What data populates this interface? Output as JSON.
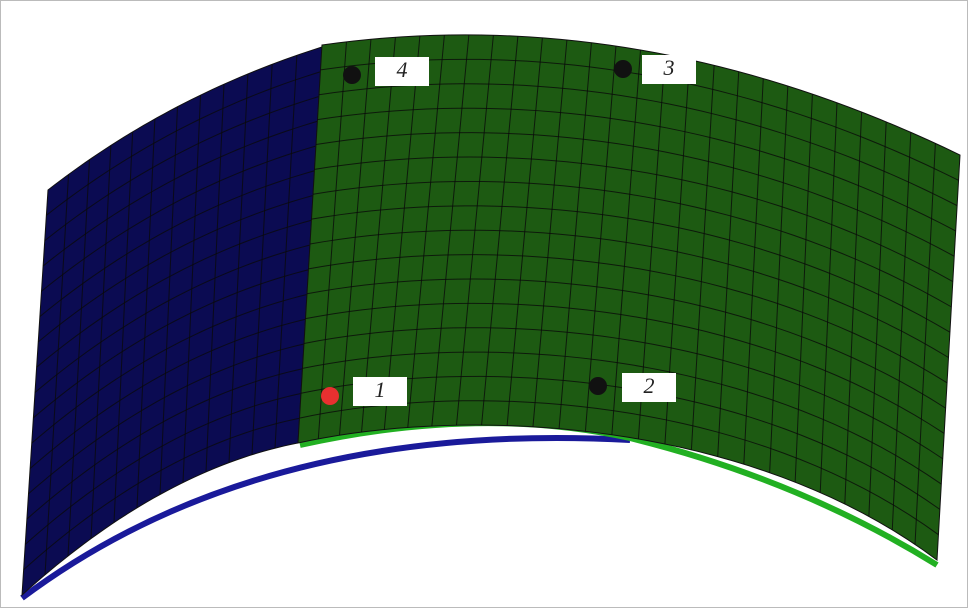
{
  "points": [
    {
      "label": "1"
    },
    {
      "label": "2"
    },
    {
      "label": "3"
    },
    {
      "label": "4"
    }
  ]
}
